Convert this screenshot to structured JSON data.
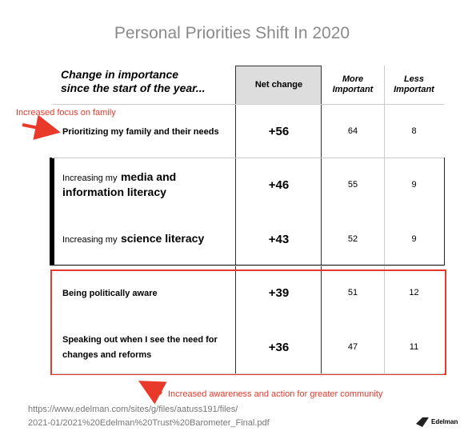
{
  "title": "Personal Priorities Shift In 2020",
  "table": {
    "caption": [
      "Change in importance",
      "since the start of the year..."
    ],
    "headers": [
      [
        "Net change"
      ],
      [
        "More",
        "Important"
      ],
      [
        "Less",
        "Important"
      ]
    ],
    "rows": [
      {
        "label": [
          "Prioritizing my family and their needs"
        ],
        "net": "+56",
        "more": 64,
        "less": 8
      },
      {
        "label": [
          "Increasing my",
          "media and information literacy"
        ],
        "net": "+46",
        "more": 55,
        "less": 9
      },
      {
        "label": [
          "Increasing my",
          "science literacy"
        ],
        "net": "+43",
        "more": 52,
        "less": 9
      },
      {
        "label": [
          "Being politically aware"
        ],
        "net": "+39",
        "more": 51,
        "less": 12
      },
      {
        "label": [
          "Speaking out when I see the need for changes and reforms"
        ],
        "net": "+36",
        "more": 47,
        "less": 11
      }
    ]
  },
  "annotations": [
    "Increased focus on family",
    "Increased awareness and action for greater community"
  ],
  "source": [
    "https://www.edelman.com/sites/g/files/aatuss191/files/",
    "2021-01/2021%20Edelman%20Trust%20Barometer_Final.pdf"
  ],
  "logo": "Edelman"
}
